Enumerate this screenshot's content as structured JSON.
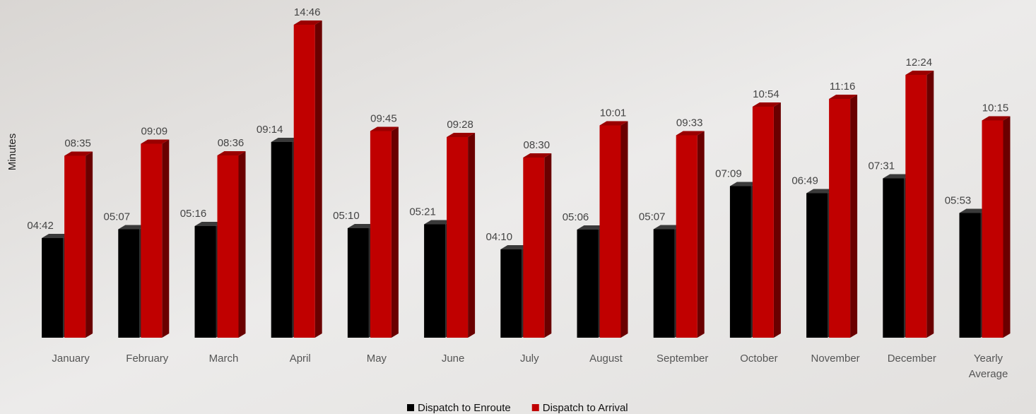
{
  "chart_data": {
    "type": "bar3d",
    "y_label": "Minutes",
    "categories": [
      "January",
      "February",
      "March",
      "April",
      "May",
      "June",
      "July",
      "August",
      "September",
      "October",
      "November",
      "December",
      "Yearly Average"
    ],
    "series": [
      {
        "name": "Dispatch to Enroute",
        "color": "#000000",
        "values": [
          4.7,
          5.1167,
          5.2667,
          9.2333,
          5.1667,
          5.35,
          4.1667,
          5.1,
          5.1167,
          7.15,
          6.8167,
          7.5167,
          5.8833
        ],
        "value_labels": [
          "04:42",
          "05:07",
          "05:16",
          "09:14",
          "05:10",
          "05:21",
          "04:10",
          "05:06",
          "05:07",
          "07:09",
          "06:49",
          "07:31",
          "05:53"
        ]
      },
      {
        "name": "Dispatch to Arrival",
        "color": "#c00000",
        "values": [
          8.5833,
          9.15,
          8.6,
          14.7667,
          9.75,
          9.4667,
          8.5,
          10.0167,
          9.55,
          10.9,
          11.2667,
          12.4,
          10.25
        ],
        "value_labels": [
          "08:35",
          "09:09",
          "08:36",
          "14:46",
          "09:45",
          "09:28",
          "08:30",
          "10:01",
          "09:33",
          "10:54",
          "11:16",
          "12:24",
          "10:15"
        ]
      }
    ],
    "ylim": [
      0,
      15
    ],
    "legend": "bottom"
  }
}
